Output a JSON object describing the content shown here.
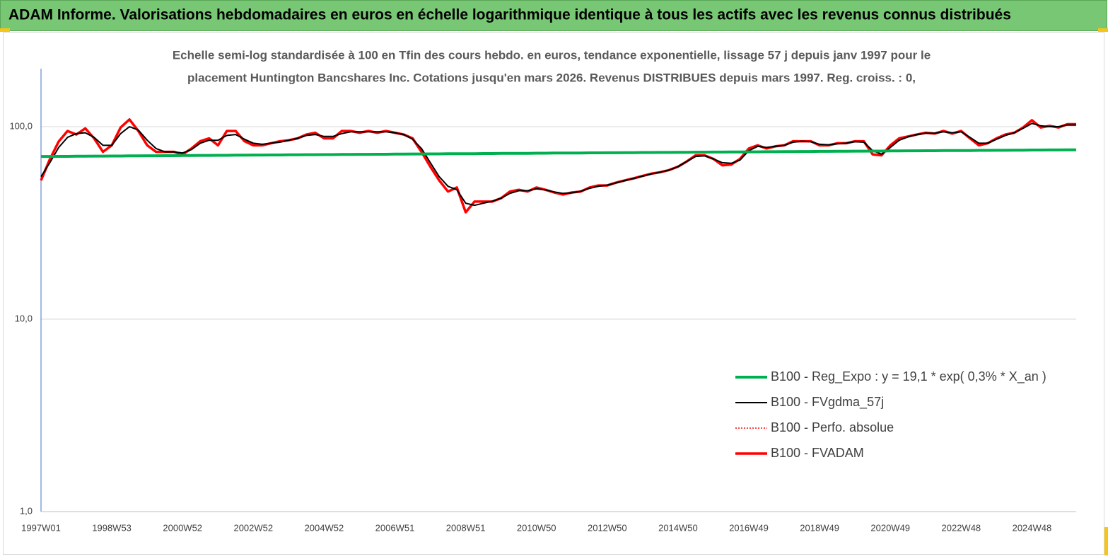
{
  "header": {
    "title": "ADAM Informe. Valorisations hebdomadaires en euros en échelle logarithmique identique à tous les actifs avec les revenus connus distribués"
  },
  "chart_data": {
    "type": "line",
    "title": [
      "Echelle semi-log standardisée à 100 en Tfin des cours hebdo. en euros, tendance exponentielle, lissage 57 j depuis janv 1997 pour le",
      "placement Huntington Bancshares Inc. Cotations jusqu'en mars 2026. Revenus DISTRIBUES depuis mars 1997. Reg. croiss. : 0,"
    ],
    "log_scale": true,
    "grid": true,
    "legend": "center-right",
    "ylim": [
      1,
      200
    ],
    "yticks": [
      {
        "value": 1,
        "label": "1,0"
      },
      {
        "value": 10,
        "label": "10,0"
      },
      {
        "value": 100,
        "label": "100,0"
      }
    ],
    "categories": [
      "1997W01",
      null,
      null,
      null,
      null,
      null,
      null,
      null,
      "1998W53",
      null,
      null,
      null,
      null,
      null,
      null,
      null,
      "2000W52",
      null,
      null,
      null,
      null,
      null,
      null,
      null,
      "2002W52",
      null,
      null,
      null,
      null,
      null,
      null,
      null,
      "2004W52",
      null,
      null,
      null,
      null,
      null,
      null,
      null,
      "2006W51",
      null,
      null,
      null,
      null,
      null,
      null,
      null,
      "2008W51",
      null,
      null,
      null,
      null,
      null,
      null,
      null,
      "2010W50",
      null,
      null,
      null,
      null,
      null,
      null,
      null,
      "2012W50",
      null,
      null,
      null,
      null,
      null,
      null,
      null,
      "2014W50",
      null,
      null,
      null,
      null,
      null,
      null,
      null,
      "2016W49",
      null,
      null,
      null,
      null,
      null,
      null,
      null,
      "2018W49",
      null,
      null,
      null,
      null,
      null,
      null,
      null,
      "2020W49",
      null,
      null,
      null,
      null,
      null,
      null,
      null,
      "2022W48",
      null,
      null,
      null,
      null,
      null,
      null,
      null,
      "2024W48",
      null,
      null,
      null,
      null,
      null
    ],
    "series": [
      {
        "name": "B100 - Reg_Expo : y = 19,1 * exp( 0,3% *  X_an )",
        "color": "#00b050",
        "line_width": 4,
        "values": [
          70.0,
          70.0,
          70.1,
          70.1,
          70.2,
          70.2,
          70.3,
          70.3,
          70.4,
          70.4,
          70.5,
          70.5,
          70.6,
          70.6,
          70.7,
          70.7,
          70.8,
          70.8,
          70.9,
          70.9,
          71.0,
          71.0,
          71.1,
          71.1,
          71.2,
          71.2,
          71.3,
          71.3,
          71.4,
          71.4,
          71.5,
          71.5,
          71.6,
          71.6,
          71.7,
          71.7,
          71.8,
          71.8,
          71.9,
          71.9,
          72.0,
          72.0,
          72.1,
          72.1,
          72.2,
          72.2,
          72.3,
          72.3,
          72.4,
          72.4,
          72.5,
          72.5,
          72.6,
          72.6,
          72.7,
          72.7,
          72.8,
          72.8,
          72.9,
          72.9,
          73.0,
          73.0,
          73.1,
          73.1,
          73.2,
          73.2,
          73.3,
          73.3,
          73.4,
          73.4,
          73.5,
          73.5,
          73.6,
          73.6,
          73.7,
          73.7,
          73.8,
          73.8,
          73.9,
          73.9,
          74.0,
          74.0,
          74.1,
          74.1,
          74.2,
          74.2,
          74.3,
          74.3,
          74.4,
          74.4,
          74.5,
          74.5,
          74.6,
          74.6,
          74.7,
          74.7,
          74.8,
          74.8,
          74.9,
          74.9,
          75.0,
          75.0,
          75.1,
          75.1,
          75.2,
          75.2,
          75.3,
          75.3,
          75.4,
          75.4,
          75.5,
          75.5,
          75.6,
          75.6,
          75.7,
          75.7,
          75.8,
          75.8
        ]
      },
      {
        "name": "B100 - FVgdma_57j",
        "color": "#000000",
        "line_width": 2,
        "values": [
          55,
          65,
          78,
          88,
          92,
          93,
          88,
          80,
          80,
          92,
          100,
          96,
          85,
          77,
          74,
          74,
          73,
          76,
          82,
          85,
          85,
          90,
          91,
          86,
          82,
          81,
          82,
          83,
          85,
          87,
          90,
          91,
          89,
          89,
          92,
          94,
          94,
          94,
          94,
          94,
          93,
          91,
          86,
          77,
          65,
          55,
          49,
          47,
          40,
          39,
          40,
          41,
          42.5,
          45,
          46.5,
          46.5,
          47.5,
          47,
          45.8,
          45,
          45.3,
          46.2,
          47.8,
          49,
          49.7,
          51,
          52.5,
          53.8,
          55.3,
          56.8,
          58,
          59.5,
          62,
          66,
          70,
          70.5,
          68,
          65,
          64.5,
          67,
          75,
          79,
          78,
          79,
          80,
          83,
          84,
          83.5,
          81,
          80.5,
          81.5,
          82,
          83.5,
          83,
          75,
          72,
          78,
          85,
          88.5,
          91,
          92.5,
          92.5,
          94,
          93,
          94,
          88,
          82,
          82,
          86,
          90,
          93,
          98,
          104,
          101,
          100,
          100,
          102,
          102
        ]
      },
      {
        "name": "B100 - Perfo. absolue",
        "color": "#ff0000",
        "line_width": 1.5,
        "dash": "dotted",
        "values": [
          52.6,
          67.7,
          83.7,
          95,
          91,
          98,
          87,
          74,
          80,
          99,
          109,
          95,
          80,
          74,
          74,
          74,
          71.7,
          77,
          84,
          87,
          80,
          95,
          95,
          84,
          80,
          80,
          82,
          84,
          85,
          87,
          91,
          93,
          87,
          87,
          95,
          95,
          93,
          95,
          93,
          95,
          93,
          91,
          87,
          74,
          62,
          52.6,
          46,
          48.3,
          35.9,
          40.8,
          40.8,
          40.8,
          42.5,
          46,
          47,
          46,
          48.3,
          47,
          45.5,
          44.4,
          45.5,
          46,
          48.3,
          49.5,
          49.5,
          51.2,
          52.6,
          53.9,
          55.5,
          57,
          58,
          59.5,
          62,
          66,
          71,
          71,
          68,
          63,
          63.5,
          68,
          77,
          80,
          77,
          79,
          80,
          84,
          84,
          84,
          80,
          80,
          82,
          82,
          84,
          84,
          71.7,
          71,
          80,
          87,
          89,
          91,
          93,
          92,
          95,
          92,
          95,
          87,
          80,
          82,
          87,
          91,
          93,
          99,
          108,
          99,
          101,
          99,
          103,
          103
        ]
      },
      {
        "name": "B100 - FVADAM",
        "color": "#ff0000",
        "line_width": 3.5,
        "values": [
          52.6,
          67.7,
          83.7,
          95,
          91,
          98,
          87,
          74,
          80,
          99,
          109,
          95,
          80,
          74,
          74,
          74,
          71.7,
          77,
          84,
          87,
          80,
          95,
          95,
          84,
          80,
          80,
          82,
          84,
          85,
          87,
          91,
          93,
          87,
          87,
          95,
          95,
          93,
          95,
          93,
          95,
          93,
          91,
          87,
          74,
          62,
          52.6,
          46,
          48.3,
          35.9,
          40.8,
          40.8,
          40.8,
          42.5,
          46,
          47,
          46,
          48.3,
          47,
          45.5,
          44.4,
          45.5,
          46,
          48.3,
          49.5,
          49.5,
          51.2,
          52.6,
          53.9,
          55.5,
          57,
          58,
          59.5,
          62,
          66,
          71,
          71,
          68,
          63,
          63.5,
          68,
          77,
          80,
          77,
          79,
          80,
          84,
          84,
          84,
          80,
          80,
          82,
          82,
          84,
          84,
          71.7,
          71,
          80,
          87,
          89,
          91,
          93,
          92,
          95,
          92,
          95,
          87,
          80,
          82,
          87,
          91,
          93,
          99,
          108,
          99,
          101,
          99,
          103,
          103
        ]
      }
    ]
  }
}
